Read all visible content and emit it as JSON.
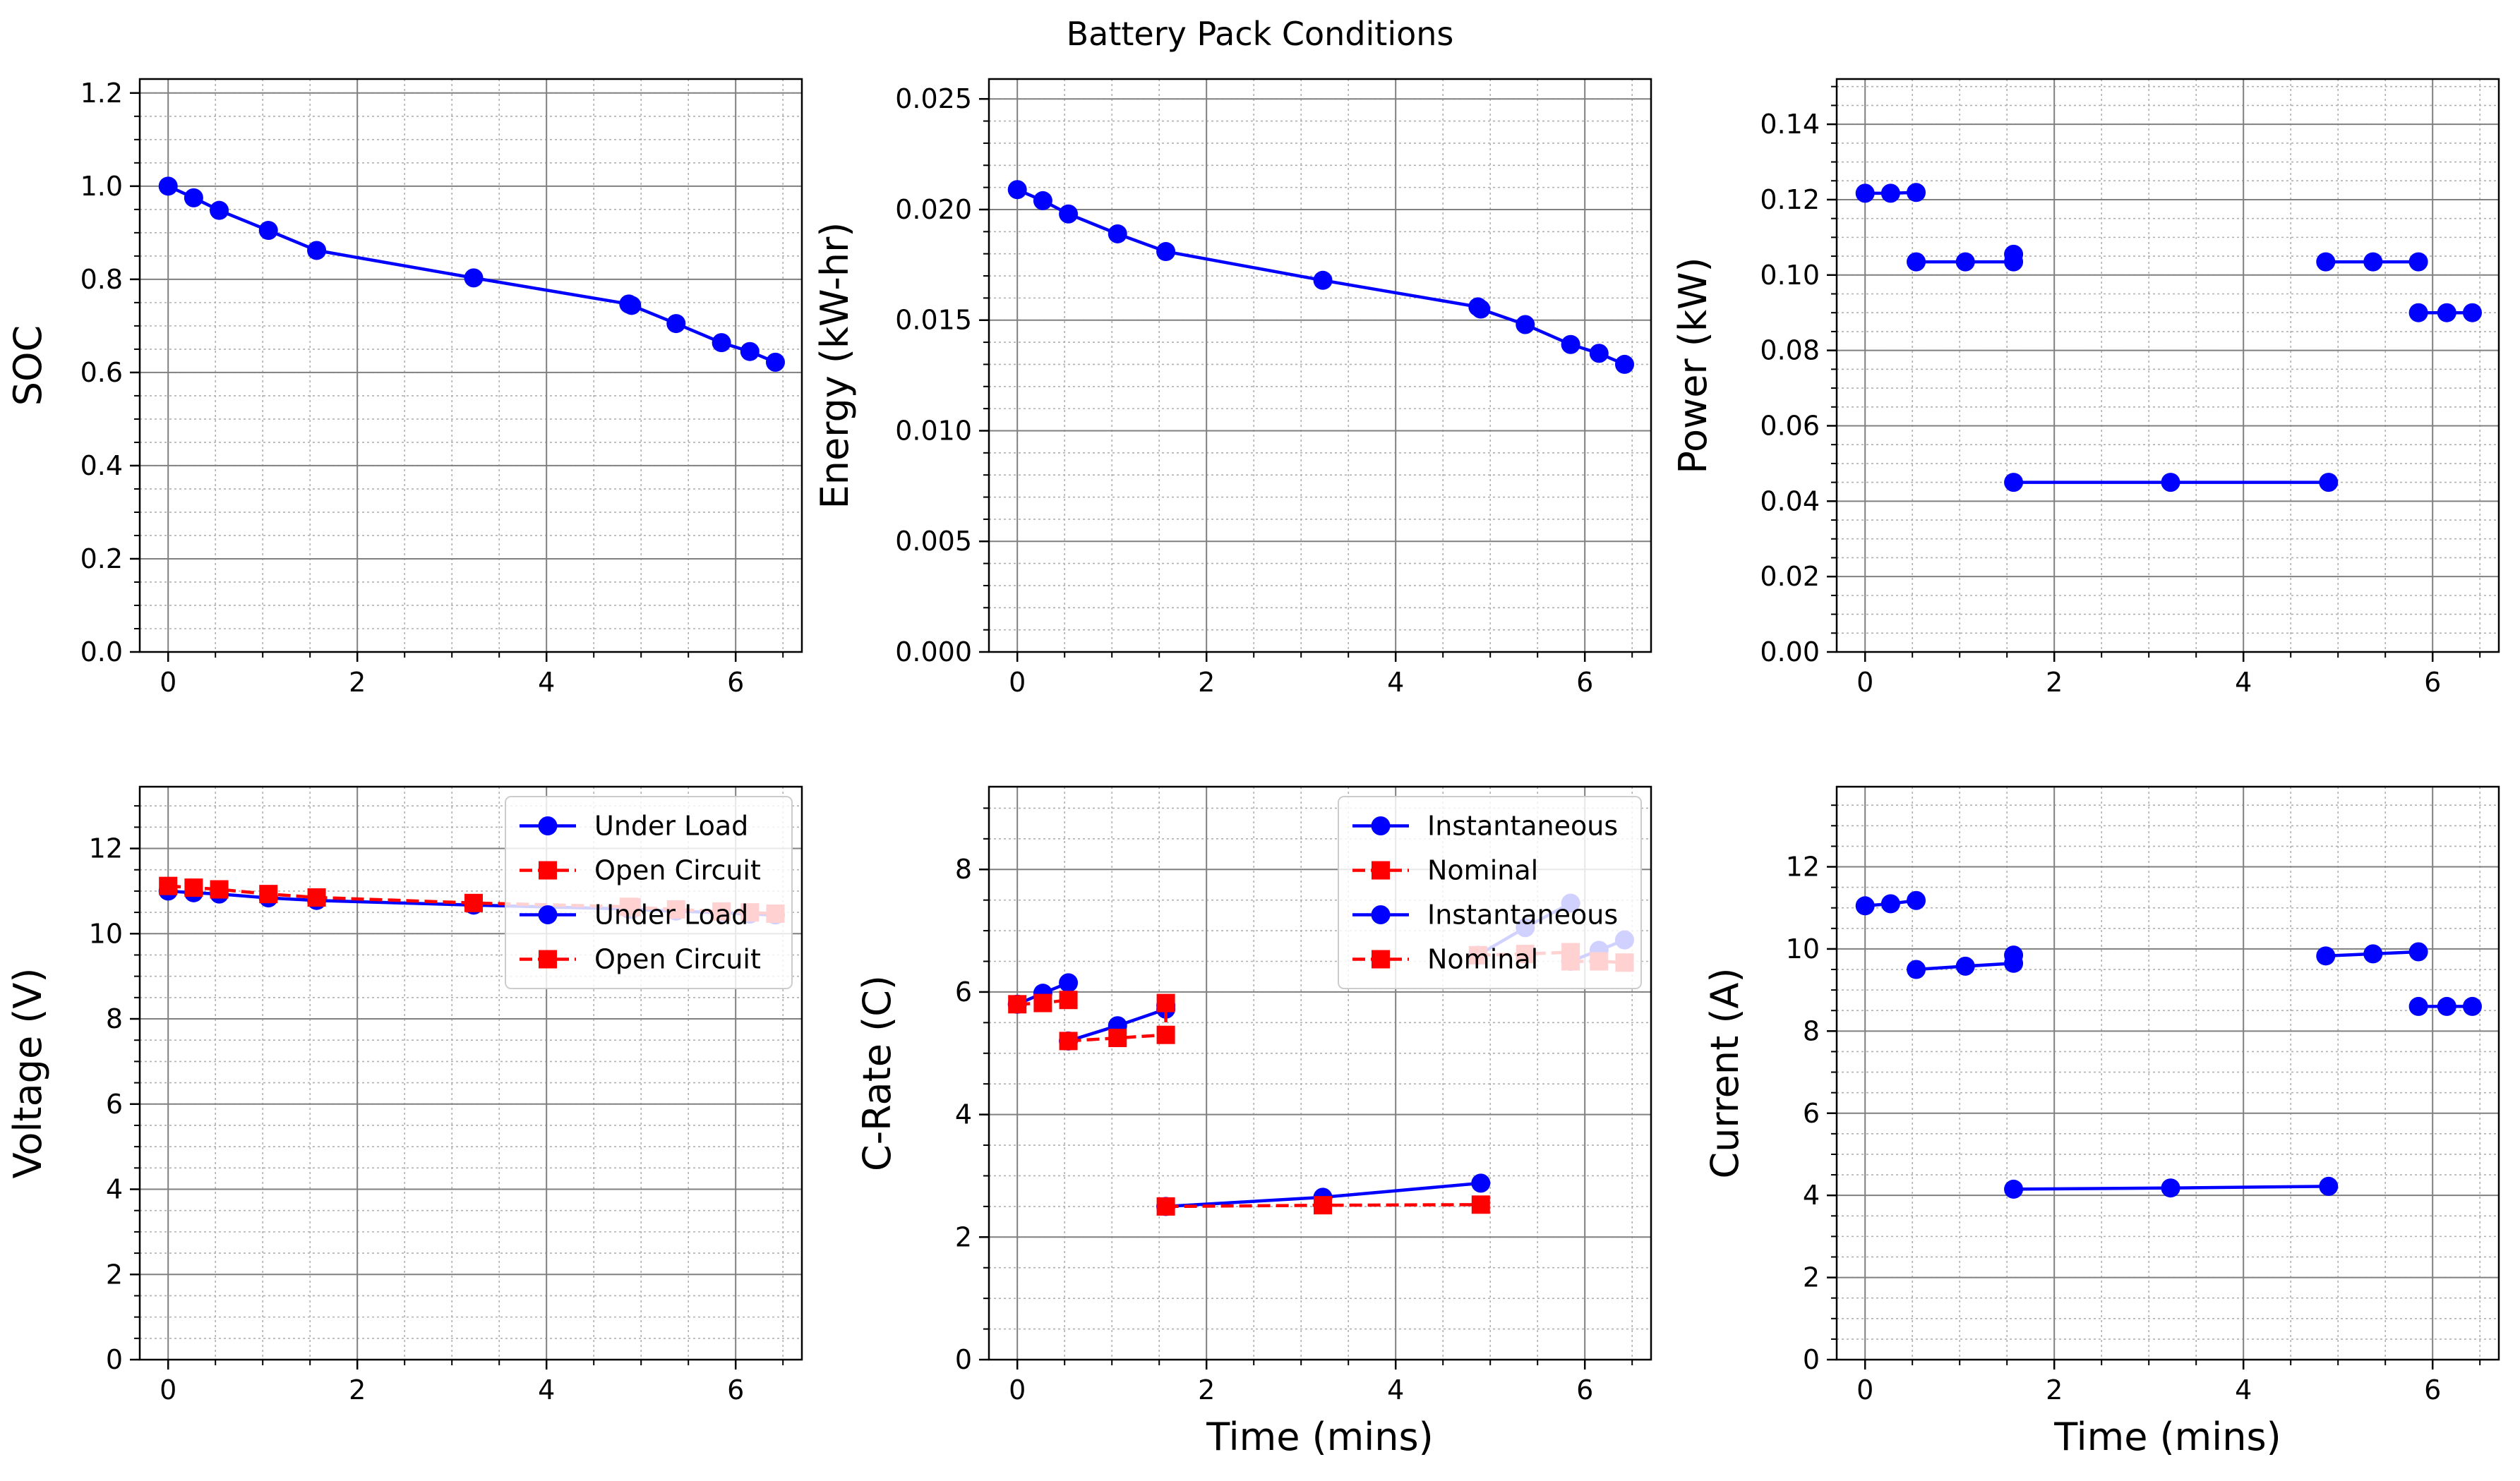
{
  "figure": {
    "suptitle": "Battery Pack Conditions",
    "colors": {
      "load": "#0000ff",
      "oc": "#ff0000",
      "major_grid": "#808080",
      "minor_grid": "#b0b0b0"
    }
  },
  "chart_data": [
    {
      "id": "soc",
      "type": "line",
      "title": "",
      "xlabel": "",
      "ylabel": "SOC",
      "xlim": [
        -0.3,
        6.7
      ],
      "ylim": [
        0,
        1.23
      ],
      "xticks": [
        0,
        2,
        4,
        6
      ],
      "xtick_labels": [
        "0",
        "2",
        "4",
        "6"
      ],
      "yticks": [
        0,
        0.2,
        0.4,
        0.6,
        0.8,
        1.0,
        1.2
      ],
      "ytick_labels": [
        "0.0",
        "0.2",
        "0.4",
        "0.6",
        "0.8",
        "1.0",
        "1.2"
      ],
      "xminor": 0.5,
      "yminor": 0.05,
      "grid": true,
      "series": [
        {
          "style": "load",
          "x": [
            0,
            0.27,
            0.54,
            1.06,
            1.57,
            3.23,
            4.87,
            4.9,
            5.37,
            5.85,
            6.15,
            6.42
          ],
          "y": [
            1.0,
            0.975,
            0.948,
            0.905,
            0.862,
            0.803,
            0.747,
            0.744,
            0.705,
            0.664,
            0.645,
            0.622
          ]
        }
      ]
    },
    {
      "id": "energy",
      "type": "line",
      "title": "",
      "xlabel": "",
      "ylabel": "Energy (kW-hr)",
      "xlim": [
        -0.3,
        6.7
      ],
      "ylim": [
        0,
        0.0259
      ],
      "xticks": [
        0,
        2,
        4,
        6
      ],
      "xtick_labels": [
        "0",
        "2",
        "4",
        "6"
      ],
      "yticks": [
        0,
        0.005,
        0.01,
        0.015,
        0.02,
        0.025
      ],
      "ytick_labels": [
        "0.000",
        "0.005",
        "0.010",
        "0.015",
        "0.020",
        "0.025"
      ],
      "xminor": 0.5,
      "yminor": 0.001,
      "grid": true,
      "series": [
        {
          "style": "load",
          "x": [
            0,
            0.27,
            0.54,
            1.06,
            1.57,
            3.23,
            4.87,
            4.9,
            5.37,
            5.85,
            6.15,
            6.42
          ],
          "y": [
            0.0209,
            0.0204,
            0.0198,
            0.0189,
            0.0181,
            0.0168,
            0.0156,
            0.0155,
            0.0148,
            0.0139,
            0.0135,
            0.013
          ]
        }
      ]
    },
    {
      "id": "power",
      "type": "line",
      "title": "",
      "xlabel": "",
      "ylabel": "Power (kW)",
      "xlim": [
        -0.3,
        6.7
      ],
      "ylim": [
        0,
        0.152
      ],
      "xticks": [
        0,
        2,
        4,
        6
      ],
      "xtick_labels": [
        "0",
        "2",
        "4",
        "6"
      ],
      "yticks": [
        0,
        0.02,
        0.04,
        0.06,
        0.08,
        0.1,
        0.12,
        0.14
      ],
      "ytick_labels": [
        "0.00",
        "0.02",
        "0.04",
        "0.06",
        "0.08",
        "0.10",
        "0.12",
        "0.14"
      ],
      "xminor": 0.5,
      "yminor": 0.005,
      "grid": true,
      "series": [
        {
          "style": "load",
          "x": [
            0,
            0.27,
            0.54
          ],
          "y": [
            0.1217,
            0.1217,
            0.1219
          ]
        },
        {
          "style": "load",
          "x": [
            0.54,
            1.06,
            1.57,
            1.57
          ],
          "y": [
            0.1035,
            0.1035,
            0.1035,
            0.1055
          ]
        },
        {
          "style": "load",
          "x": [
            1.57,
            3.23,
            4.9
          ],
          "y": [
            0.045,
            0.045,
            0.045
          ]
        },
        {
          "style": "load",
          "x": [
            4.87,
            5.37,
            5.85
          ],
          "y": [
            0.1035,
            0.1035,
            0.1035
          ]
        },
        {
          "style": "load",
          "x": [
            5.85,
            6.15,
            6.42
          ],
          "y": [
            0.09,
            0.09,
            0.09
          ]
        }
      ]
    },
    {
      "id": "voltage",
      "type": "line",
      "title": "",
      "xlabel": "",
      "ylabel": "Voltage (V)",
      "xlim": [
        -0.3,
        6.7
      ],
      "ylim": [
        0,
        13.45
      ],
      "xticks": [
        0,
        2,
        4,
        6
      ],
      "xtick_labels": [
        "0",
        "2",
        "4",
        "6"
      ],
      "yticks": [
        0,
        2,
        4,
        6,
        8,
        10,
        12
      ],
      "ytick_labels": [
        "0",
        "2",
        "4",
        "6",
        "8",
        "10",
        "12"
      ],
      "xminor": 0.5,
      "yminor": 0.5,
      "grid": true,
      "legend": {
        "position": "upper right",
        "entries": [
          {
            "label": "Under Load",
            "style": "load"
          },
          {
            "label": "Open Circuit",
            "style": "oc"
          },
          {
            "label": "Under Load",
            "style": "load"
          },
          {
            "label": "Open Circuit",
            "style": "oc"
          }
        ]
      },
      "series": [
        {
          "style": "load",
          "x": [
            0,
            0.27,
            0.54,
            1.06,
            1.57,
            3.23,
            4.87,
            4.9,
            5.37,
            5.85,
            6.15,
            6.42
          ],
          "y": [
            11.0,
            10.96,
            10.93,
            10.84,
            10.78,
            10.67,
            10.58,
            10.57,
            10.53,
            10.49,
            10.46,
            10.44
          ]
        },
        {
          "style": "oc",
          "x": [
            0,
            0.27,
            0.54,
            1.06,
            1.57,
            3.23,
            4.87,
            4.9,
            5.37,
            5.85,
            6.15,
            6.42
          ],
          "y": [
            11.12,
            11.08,
            11.04,
            10.93,
            10.85,
            10.72,
            10.63,
            10.62,
            10.57,
            10.52,
            10.5,
            10.47
          ]
        }
      ]
    },
    {
      "id": "crate",
      "type": "line",
      "title": "",
      "xlabel": "Time (mins)",
      "ylabel": "C-Rate (C)",
      "xlim": [
        -0.3,
        6.7
      ],
      "ylim": [
        0,
        9.35
      ],
      "xticks": [
        0,
        2,
        4,
        6
      ],
      "xtick_labels": [
        "0",
        "2",
        "4",
        "6"
      ],
      "yticks": [
        0,
        2,
        4,
        6,
        8
      ],
      "ytick_labels": [
        "0",
        "2",
        "4",
        "6",
        "8"
      ],
      "xminor": 0.5,
      "yminor": 0.5,
      "grid": true,
      "legend": {
        "position": "upper right",
        "entries": [
          {
            "label": "Instantaneous",
            "style": "load"
          },
          {
            "label": "Nominal",
            "style": "oc"
          },
          {
            "label": "Instantaneous",
            "style": "load"
          },
          {
            "label": "Nominal",
            "style": "oc"
          }
        ]
      },
      "series": [
        {
          "style": "load",
          "x": [
            0,
            0.27,
            0.54
          ],
          "y": [
            5.8,
            5.98,
            6.15
          ]
        },
        {
          "style": "oc",
          "x": [
            0,
            0.27,
            0.54
          ],
          "y": [
            5.8,
            5.82,
            5.87
          ]
        },
        {
          "style": "load",
          "x": [
            0.54,
            1.06,
            1.57,
            1.57
          ],
          "y": [
            5.2,
            5.45,
            5.72,
            5.78
          ]
        },
        {
          "style": "oc",
          "x": [
            0.54,
            1.06,
            1.57,
            1.57
          ],
          "y": [
            5.2,
            5.25,
            5.3,
            5.82
          ]
        },
        {
          "style": "load",
          "x": [
            1.57,
            3.23,
            4.9
          ],
          "y": [
            2.5,
            2.65,
            2.88
          ]
        },
        {
          "style": "oc",
          "x": [
            1.57,
            3.23,
            4.9
          ],
          "y": [
            2.5,
            2.52,
            2.53
          ]
        },
        {
          "style": "load",
          "x": [
            4.87,
            5.37,
            5.85
          ],
          "y": [
            6.6,
            7.05,
            7.45
          ]
        },
        {
          "style": "oc",
          "x": [
            4.87,
            5.37,
            5.85
          ],
          "y": [
            6.6,
            6.62,
            6.65
          ]
        },
        {
          "style": "load",
          "x": [
            5.85,
            6.15,
            6.42
          ],
          "y": [
            6.5,
            6.68,
            6.85
          ]
        },
        {
          "style": "oc",
          "x": [
            5.85,
            6.15,
            6.42
          ],
          "y": [
            6.5,
            6.5,
            6.48
          ]
        }
      ]
    },
    {
      "id": "current",
      "type": "line",
      "title": "",
      "xlabel": "Time (mins)",
      "ylabel": "Current (A)",
      "xlim": [
        -0.3,
        6.7
      ],
      "ylim": [
        0,
        13.95
      ],
      "xticks": [
        0,
        2,
        4,
        6
      ],
      "xtick_labels": [
        "0",
        "2",
        "4",
        "6"
      ],
      "yticks": [
        0,
        2,
        4,
        6,
        8,
        10,
        12
      ],
      "ytick_labels": [
        "0",
        "2",
        "4",
        "6",
        "8",
        "10",
        "12"
      ],
      "xminor": 0.5,
      "yminor": 0.5,
      "grid": true,
      "series": [
        {
          "style": "load",
          "x": [
            0,
            0.27,
            0.54
          ],
          "y": [
            11.05,
            11.1,
            11.18
          ]
        },
        {
          "style": "load",
          "x": [
            0.54,
            1.06,
            1.57,
            1.57
          ],
          "y": [
            9.5,
            9.58,
            9.65,
            9.85
          ]
        },
        {
          "style": "load",
          "x": [
            1.57,
            3.23,
            4.9
          ],
          "y": [
            4.15,
            4.18,
            4.22
          ]
        },
        {
          "style": "load",
          "x": [
            4.87,
            5.37,
            5.85
          ],
          "y": [
            9.83,
            9.88,
            9.93
          ]
        },
        {
          "style": "load",
          "x": [
            5.85,
            6.15,
            6.42
          ],
          "y": [
            8.6,
            8.6,
            8.6
          ]
        }
      ]
    }
  ]
}
